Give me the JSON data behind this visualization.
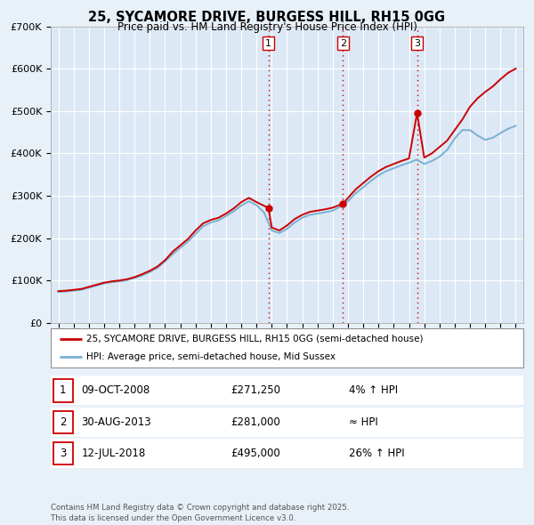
{
  "title": "25, SYCAMORE DRIVE, BURGESS HILL, RH15 0GG",
  "subtitle": "Price paid vs. HM Land Registry's House Price Index (HPI)",
  "bg_color": "#e8f0f8",
  "plot_bg_color": "#dce8f5",
  "grid_color": "#ffffff",
  "ylim": [
    0,
    700000
  ],
  "yticks": [
    0,
    100000,
    200000,
    300000,
    400000,
    500000,
    600000,
    700000
  ],
  "ytick_labels": [
    "£0",
    "£100K",
    "£200K",
    "£300K",
    "£400K",
    "£500K",
    "£600K",
    "£700K"
  ],
  "xlim_start": 1994.5,
  "xlim_end": 2025.5,
  "sale_color": "#cc0000",
  "hpi_color": "#7ab0d4",
  "sale_label": "25, SYCAMORE DRIVE, BURGESS HILL, RH15 0GG (semi-detached house)",
  "hpi_label": "HPI: Average price, semi-detached house, Mid Sussex",
  "vline_color": "#cc0000",
  "sale_points": [
    {
      "year": 2008.78,
      "value": 271250,
      "label": "1"
    },
    {
      "year": 2013.67,
      "value": 281000,
      "label": "2"
    },
    {
      "year": 2018.53,
      "value": 495000,
      "label": "3"
    }
  ],
  "table_rows": [
    {
      "num": "1",
      "date": "09-OCT-2008",
      "price": "£271,250",
      "hpi": "4% ↑ HPI"
    },
    {
      "num": "2",
      "date": "30-AUG-2013",
      "price": "£281,000",
      "hpi": "≈ HPI"
    },
    {
      "num": "3",
      "date": "12-JUL-2018",
      "price": "£495,000",
      "hpi": "26% ↑ HPI"
    }
  ],
  "footnote": "Contains HM Land Registry data © Crown copyright and database right 2025.\nThis data is licensed under the Open Government Licence v3.0.",
  "sale_data_x": [
    1995.0,
    1995.5,
    1996.0,
    1996.5,
    1997.0,
    1997.5,
    1998.0,
    1998.5,
    1999.0,
    1999.5,
    2000.0,
    2000.5,
    2001.0,
    2001.5,
    2002.0,
    2002.5,
    2003.0,
    2003.5,
    2004.0,
    2004.5,
    2005.0,
    2005.5,
    2006.0,
    2006.5,
    2007.0,
    2007.5,
    2008.0,
    2008.78,
    2009.0,
    2009.5,
    2010.0,
    2010.5,
    2011.0,
    2011.5,
    2012.0,
    2012.5,
    2013.0,
    2013.67,
    2014.0,
    2014.5,
    2015.0,
    2015.5,
    2016.0,
    2016.5,
    2017.0,
    2017.5,
    2018.0,
    2018.53,
    2019.0,
    2019.5,
    2020.0,
    2020.5,
    2021.0,
    2021.5,
    2022.0,
    2022.5,
    2023.0,
    2023.5,
    2024.0,
    2024.5,
    2025.0
  ],
  "sale_data_y": [
    75000,
    76000,
    78000,
    80000,
    85000,
    90000,
    95000,
    98000,
    100000,
    103000,
    108000,
    115000,
    123000,
    133000,
    148000,
    168000,
    183000,
    198000,
    218000,
    235000,
    243000,
    248000,
    258000,
    270000,
    285000,
    295000,
    285000,
    271250,
    225000,
    218000,
    230000,
    245000,
    255000,
    262000,
    265000,
    268000,
    272000,
    281000,
    295000,
    315000,
    330000,
    345000,
    358000,
    368000,
    375000,
    382000,
    388000,
    495000,
    390000,
    400000,
    415000,
    430000,
    455000,
    480000,
    510000,
    530000,
    545000,
    558000,
    575000,
    590000,
    600000
  ],
  "hpi_data_x": [
    1995.0,
    1995.5,
    1996.0,
    1996.5,
    1997.0,
    1997.5,
    1998.0,
    1998.5,
    1999.0,
    1999.5,
    2000.0,
    2000.5,
    2001.0,
    2001.5,
    2002.0,
    2002.5,
    2003.0,
    2003.5,
    2004.0,
    2004.5,
    2005.0,
    2005.5,
    2006.0,
    2006.5,
    2007.0,
    2007.5,
    2008.0,
    2008.5,
    2009.0,
    2009.5,
    2010.0,
    2010.5,
    2011.0,
    2011.5,
    2012.0,
    2012.5,
    2013.0,
    2013.5,
    2014.0,
    2014.5,
    2015.0,
    2015.5,
    2016.0,
    2016.5,
    2017.0,
    2017.5,
    2018.0,
    2018.5,
    2019.0,
    2019.5,
    2020.0,
    2020.5,
    2021.0,
    2021.5,
    2022.0,
    2022.5,
    2023.0,
    2023.5,
    2024.0,
    2024.5,
    2025.0
  ],
  "hpi_data_y": [
    73000,
    74000,
    76000,
    78000,
    83000,
    88000,
    93000,
    96000,
    98000,
    101000,
    106000,
    112000,
    120000,
    130000,
    145000,
    162000,
    177000,
    192000,
    210000,
    228000,
    237000,
    242000,
    252000,
    263000,
    277000,
    287000,
    278000,
    260000,
    218000,
    212000,
    222000,
    237000,
    248000,
    255000,
    258000,
    261000,
    265000,
    274000,
    287000,
    306000,
    320000,
    335000,
    348000,
    358000,
    365000,
    372000,
    378000,
    385000,
    375000,
    382000,
    392000,
    408000,
    435000,
    455000,
    455000,
    442000,
    432000,
    437000,
    448000,
    458000,
    465000
  ]
}
